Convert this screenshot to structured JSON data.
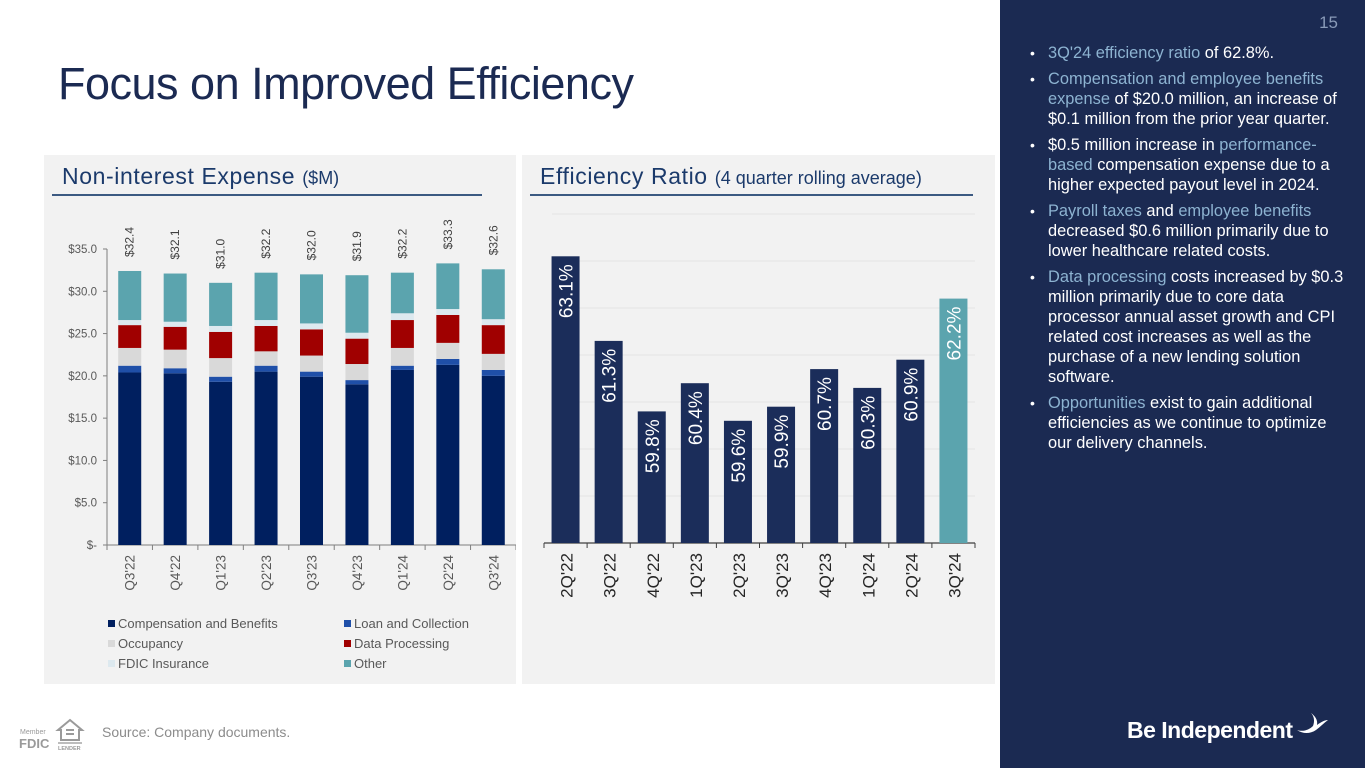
{
  "slide": {
    "title": "Focus on Improved Efficiency",
    "page_number": "15",
    "source": "Source: Company documents.",
    "brand": "Be Independent",
    "fdic_badge": {
      "member": "Member",
      "fdic": "FDIC",
      "lender": "EQUAL HOUSING LENDER"
    }
  },
  "left_panel": {
    "title": "Non-interest Expense",
    "title_unit": "($M)"
  },
  "right_panel": {
    "title": "Efficiency Ratio",
    "title_sub": "(4 quarter rolling average)"
  },
  "sidebar": {
    "bullets": [
      {
        "parts": [
          {
            "t": "3Q'24 efficiency ratio",
            "hl": true
          },
          {
            "t": " of 62.8%.",
            "hl": false
          }
        ]
      },
      {
        "parts": [
          {
            "t": "Compensation and employee benefits expense",
            "hl": true
          },
          {
            "t": " of $20.0 million, an increase of $0.1 million from the prior year quarter.",
            "hl": false
          }
        ]
      },
      {
        "parts": [
          {
            "t": "$0.5 million increase in ",
            "hl": false
          },
          {
            "t": "performance-based",
            "hl": true
          },
          {
            "t": " compensation expense due to a higher expected payout level in 2024.",
            "hl": false
          }
        ]
      },
      {
        "parts": [
          {
            "t": "Payroll taxes",
            "hl": true
          },
          {
            "t": " and ",
            "hl": false
          },
          {
            "t": "employee benefits",
            "hl": true
          },
          {
            "t": " decreased $0.6 million primarily due to  lower healthcare related costs.",
            "hl": false
          }
        ]
      },
      {
        "parts": [
          {
            "t": "Data processing",
            "hl": true
          },
          {
            "t": " costs increased by $0.3 million primarily due to core data processor annual asset growth and CPI related cost increases as well as the purchase of a new lending solution software.",
            "hl": false
          }
        ]
      },
      {
        "parts": [
          {
            "t": "Opportunities",
            "hl": true
          },
          {
            "t": " exist to gain additional efficiencies as we continue to optimize our delivery channels.",
            "hl": false
          }
        ]
      }
    ]
  },
  "colors": {
    "navy": "#1b2a52",
    "accent_light_blue": "#8db3d1",
    "teal": "#5ba4ae",
    "ratio_bar": "#1b2d5a"
  },
  "chart_data": [
    {
      "type": "bar",
      "stacked": true,
      "title": "Non-interest Expense ($M)",
      "xlabel": "",
      "ylabel": "",
      "ylim": [
        0,
        35
      ],
      "yticks": [
        0,
        5,
        10,
        15,
        20,
        25,
        30,
        35
      ],
      "ytick_labels": [
        "$-",
        "$5.0",
        "$10.0",
        "$15.0",
        "$20.0",
        "$25.0",
        "$30.0",
        "$35.0"
      ],
      "grid": false,
      "legend_position": "bottom",
      "categories": [
        "Q3'22",
        "Q4'22",
        "Q1'23",
        "Q2'23",
        "Q3'23",
        "Q4'23",
        "Q1'24",
        "Q2'24",
        "Q3'24"
      ],
      "totals": [
        32.4,
        32.1,
        31.0,
        32.2,
        32.0,
        31.9,
        32.2,
        33.3,
        32.6
      ],
      "total_labels": [
        "$32.4",
        "$32.1",
        "$31.0",
        "$32.2",
        "$32.0",
        "$31.9",
        "$32.2",
        "$33.3",
        "$32.6"
      ],
      "series": [
        {
          "name": "Compensation and Benefits",
          "color": "#001f5f",
          "values": [
            20.4,
            20.3,
            19.3,
            20.5,
            19.9,
            19.0,
            20.7,
            21.3,
            20.0
          ]
        },
        {
          "name": "Loan and Collection",
          "color": "#1f4fa8",
          "values": [
            0.8,
            0.6,
            0.6,
            0.7,
            0.6,
            0.5,
            0.5,
            0.7,
            0.7
          ]
        },
        {
          "name": "Occupancy",
          "color": "#d9d9d9",
          "values": [
            2.1,
            2.2,
            2.2,
            1.7,
            1.9,
            1.9,
            2.1,
            1.9,
            1.9
          ]
        },
        {
          "name": "Data Processing",
          "color": "#a00000",
          "values": [
            2.7,
            2.7,
            3.1,
            3.0,
            3.1,
            3.0,
            3.3,
            3.3,
            3.4
          ]
        },
        {
          "name": "FDIC Insurance",
          "color": "#dde9ef",
          "values": [
            0.6,
            0.6,
            0.7,
            0.7,
            0.7,
            0.7,
            0.8,
            0.7,
            0.7
          ]
        },
        {
          "name": "Other",
          "color": "#5ba4ae",
          "values": [
            5.8,
            5.7,
            5.1,
            5.6,
            5.8,
            6.8,
            4.8,
            5.4,
            5.9
          ]
        }
      ]
    },
    {
      "type": "bar",
      "title": "Efficiency Ratio (4 quarter rolling average)",
      "xlabel": "",
      "ylabel": "",
      "ylim": [
        57,
        64
      ],
      "grid": true,
      "categories": [
        "2Q'22",
        "3Q'22",
        "4Q'22",
        "1Q'23",
        "2Q'23",
        "3Q'23",
        "4Q'23",
        "1Q'24",
        "2Q'24",
        "3Q'24"
      ],
      "values": [
        63.1,
        61.3,
        59.8,
        60.4,
        59.6,
        59.9,
        60.7,
        60.3,
        60.9,
        62.2
      ],
      "value_labels": [
        "63.1%",
        "61.3%",
        "59.8%",
        "60.4%",
        "59.6%",
        "59.9%",
        "60.7%",
        "60.3%",
        "60.9%",
        "62.2%"
      ],
      "highlight_index": 9,
      "bar_color": "#1b2d5a",
      "highlight_color": "#5ba4ae"
    }
  ]
}
